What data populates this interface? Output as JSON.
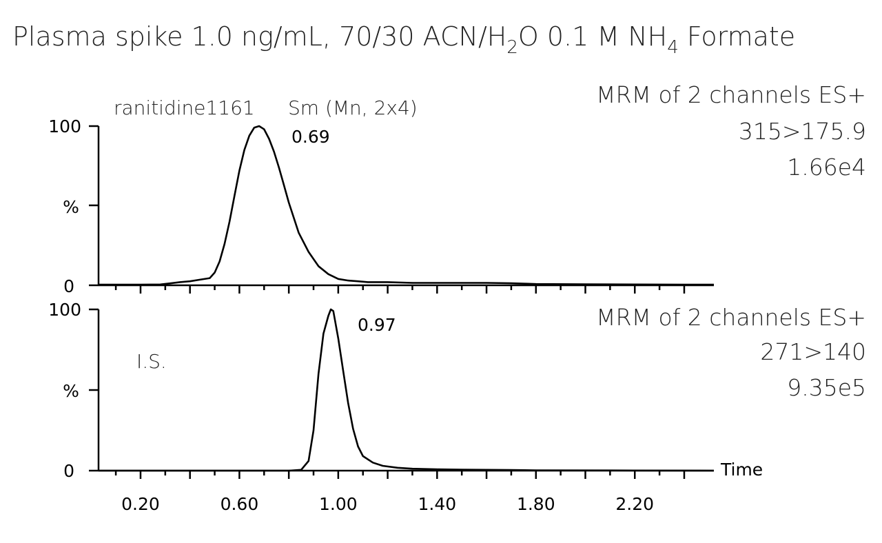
{
  "title": {
    "part1": "Plasma spike 1.0 ng/mL, 70/30 ACN/H",
    "sub1": "2",
    "part2": "O 0.1 M NH",
    "sub2": "4",
    "part3": " Formate"
  },
  "chart_data": [
    {
      "type": "line",
      "sample_label": "ranitidine1161",
      "smoothing_label": "Sm (Mn, 2x4)",
      "header_lines": [
        "MRM of 2 channels ES+",
        "315>175.9",
        "1.66e4"
      ],
      "y_tick_labels": [
        "100",
        "%",
        "0"
      ],
      "peak_label": "0.69",
      "ylim": [
        0,
        100
      ],
      "xlim": [
        0.03,
        2.52
      ],
      "x": [
        0.03,
        0.1,
        0.2,
        0.28,
        0.32,
        0.36,
        0.4,
        0.44,
        0.48,
        0.5,
        0.52,
        0.54,
        0.56,
        0.58,
        0.6,
        0.62,
        0.64,
        0.66,
        0.68,
        0.7,
        0.72,
        0.74,
        0.76,
        0.78,
        0.8,
        0.84,
        0.88,
        0.92,
        0.96,
        1.0,
        1.04,
        1.08,
        1.12,
        1.2,
        1.3,
        1.4,
        1.6,
        1.7,
        1.76,
        1.8,
        2.0,
        2.2,
        2.4,
        2.52
      ],
      "y": [
        0.4,
        0.4,
        0.4,
        0.5,
        1.2,
        2.0,
        2.5,
        3.5,
        4.5,
        8,
        15,
        26,
        40,
        56,
        72,
        85,
        94,
        99,
        100,
        98,
        92,
        84,
        74,
        63,
        52,
        33,
        21,
        12,
        7,
        4,
        3,
        2.5,
        2,
        2,
        1.5,
        1.5,
        1.5,
        1.3,
        1,
        0.8,
        0.6,
        0.5,
        0.4,
        0.4
      ]
    },
    {
      "type": "line",
      "annotation": "I.S.",
      "header_lines": [
        "MRM of 2 channels ES+",
        "271>140",
        "9.35e5"
      ],
      "y_tick_labels": [
        "100",
        "%",
        "0"
      ],
      "peak_label": "0.97",
      "axis_title": "Time",
      "x_tick_labels": [
        "0.20",
        "0.60",
        "1.00",
        "1.40",
        "1.80",
        "2.20"
      ],
      "ylim": [
        0,
        100
      ],
      "xlim": [
        0.03,
        2.52
      ],
      "x": [
        0.03,
        0.5,
        0.8,
        0.85,
        0.88,
        0.9,
        0.92,
        0.94,
        0.96,
        0.97,
        0.98,
        1.0,
        1.02,
        1.04,
        1.06,
        1.08,
        1.1,
        1.14,
        1.18,
        1.24,
        1.3,
        1.4,
        1.5,
        1.6,
        1.7,
        1.8,
        2.2,
        2.52
      ],
      "y": [
        0,
        0,
        0,
        0.5,
        6,
        25,
        60,
        85,
        96,
        100,
        99,
        82,
        62,
        42,
        26,
        15,
        9,
        5,
        3,
        1.8,
        1.2,
        0.8,
        0.6,
        0.5,
        0.4,
        0.2,
        0.1,
        0
      ]
    }
  ]
}
